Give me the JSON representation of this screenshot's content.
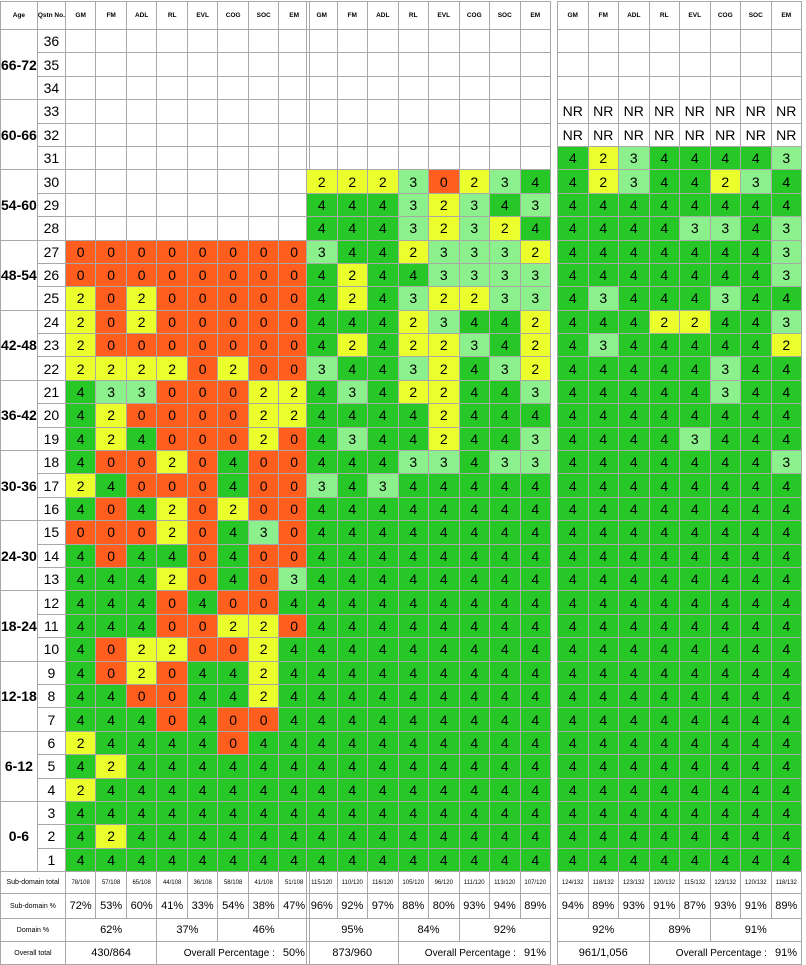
{
  "headers": {
    "age": "Age",
    "qstn": "Qstn No.",
    "domains": [
      "GM",
      "FM",
      "ADL",
      "RL",
      "EVL",
      "COG",
      "SOC",
      "EM"
    ]
  },
  "rows": [
    {
      "q": "36",
      "age": "66-72",
      "span": 3
    },
    {
      "q": "35"
    },
    {
      "q": "34"
    },
    {
      "q": "33",
      "age": "60-66",
      "span": 3
    },
    {
      "q": "32"
    },
    {
      "q": "31"
    },
    {
      "q": "30",
      "age": "54-60",
      "span": 3
    },
    {
      "q": "29"
    },
    {
      "q": "28"
    },
    {
      "q": "27",
      "age": "48-54",
      "span": 3
    },
    {
      "q": "26"
    },
    {
      "q": "25"
    },
    {
      "q": "24",
      "age": "42-48",
      "span": 3
    },
    {
      "q": "23"
    },
    {
      "q": "22"
    },
    {
      "q": "21",
      "age": "36-42",
      "span": 3
    },
    {
      "q": "20"
    },
    {
      "q": "19"
    },
    {
      "q": "18",
      "age": "30-36",
      "span": 3
    },
    {
      "q": "17"
    },
    {
      "q": "16"
    },
    {
      "q": "15",
      "age": "24-30",
      "span": 3
    },
    {
      "q": "14"
    },
    {
      "q": "13"
    },
    {
      "q": "12",
      "age": "18-24",
      "span": 3
    },
    {
      "q": "11"
    },
    {
      "q": "10"
    },
    {
      "q": "9",
      "age": "12-18",
      "span": 3
    },
    {
      "q": "8"
    },
    {
      "q": "7"
    },
    {
      "q": "6",
      "age": "6-12",
      "span": 3
    },
    {
      "q": "5"
    },
    {
      "q": "4"
    },
    {
      "q": "3",
      "age": "0-6",
      "span": 3
    },
    {
      "q": "2"
    },
    {
      "q": "1"
    }
  ],
  "labels": {
    "subtotal": "Sub-domain total",
    "subpct": "Sub-domain %",
    "dompct": "Domain %",
    "overall": "Overall total",
    "overall_pct_label": "Overall Percentage :"
  },
  "panels": [
    {
      "cells": [
        "........",
        "........",
        "........",
        "........",
        "........",
        "........",
        "........",
        "........",
        "........",
        "00000000",
        "00000000",
        "20200000",
        "20200000",
        "20000000",
        "22220200",
        "43300022",
        "42000022",
        "42400020",
        "40020400",
        "24000400",
        "40420200",
        "00020430",
        "40440400",
        "44420403",
        "44404004",
        "44400220",
        "40220024",
        "40204424",
        "44004424",
        "44404004",
        "24444044",
        "42444444",
        "24444444",
        "44444444",
        "42444444",
        "44444444"
      ],
      "subtotal": [
        "78/108",
        "57/108",
        "65/108",
        "44/108",
        "36/108",
        "58/108",
        "41/108",
        "51/108"
      ],
      "subpct": [
        "72%",
        "53%",
        "60%",
        "41%",
        "33%",
        "54%",
        "38%",
        "47%"
      ],
      "domain": [
        {
          "span": 3,
          "value": "62%"
        },
        {
          "span": 2,
          "value": "37%"
        },
        {
          "span": 3,
          "value": "46%"
        }
      ],
      "overall_total": "430/864",
      "overall_pct": "50%"
    },
    {
      "cells": [
        "........",
        "........",
        "........",
        "........",
        "........",
        "........",
        "22230234",
        "44432343",
        "44432324",
        "34423332",
        "42443333",
        "42432233",
        "44423442",
        "42422342",
        "34432432",
        "43422443",
        "44442444",
        "43442443",
        "44433433",
        "34344444",
        "44444444",
        "44444444",
        "44444444",
        "44444444",
        "44444444",
        "44444444",
        "44444444",
        "44444444",
        "44444444",
        "44444444",
        "44444444",
        "44444444",
        "44444444",
        "44444444",
        "44444444",
        "44444444"
      ],
      "subtotal": [
        "115/120",
        "110/120",
        "116/120",
        "105/120",
        "96/120",
        "111/120",
        "113/120",
        "107/120"
      ],
      "subpct": [
        "96%",
        "92%",
        "97%",
        "88%",
        "80%",
        "93%",
        "94%",
        "89%"
      ],
      "domain": [
        {
          "span": 3,
          "value": "95%"
        },
        {
          "span": 2,
          "value": "84%"
        },
        {
          "span": 3,
          "value": "92%"
        }
      ],
      "overall_total": "873/960",
      "overall_pct": "91%"
    },
    {
      "cells": [
        "........",
        "........",
        "........",
        "NNNNNNNN",
        "NNNNNNNN",
        "42344443",
        "42344234",
        "44444444",
        "44443343",
        "44444443",
        "44444443",
        "43444344",
        "44422443",
        "43444442",
        "44444344",
        "44444344",
        "44444444",
        "44443444",
        "44444443",
        "44444444",
        "44444444",
        "44444444",
        "44444444",
        "44444444",
        "44444444",
        "44444444",
        "44444444",
        "44444444",
        "44444444",
        "44444444",
        "44444444",
        "44444444",
        "44444444",
        "44444444",
        "44444444",
        "44444444"
      ],
      "nr_text": "NR",
      "subtotal": [
        "124/132",
        "118/132",
        "123/132",
        "120/132",
        "115/132",
        "123/132",
        "120/132",
        "118/132"
      ],
      "subpct": [
        "94%",
        "89%",
        "93%",
        "91%",
        "87%",
        "93%",
        "91%",
        "89%"
      ],
      "domain": [
        {
          "span": 3,
          "value": "92%"
        },
        {
          "span": 2,
          "value": "89%"
        },
        {
          "span": 3,
          "value": "91%"
        }
      ],
      "overall_total": "961/1,056",
      "overall_pct": "91%"
    }
  ]
}
